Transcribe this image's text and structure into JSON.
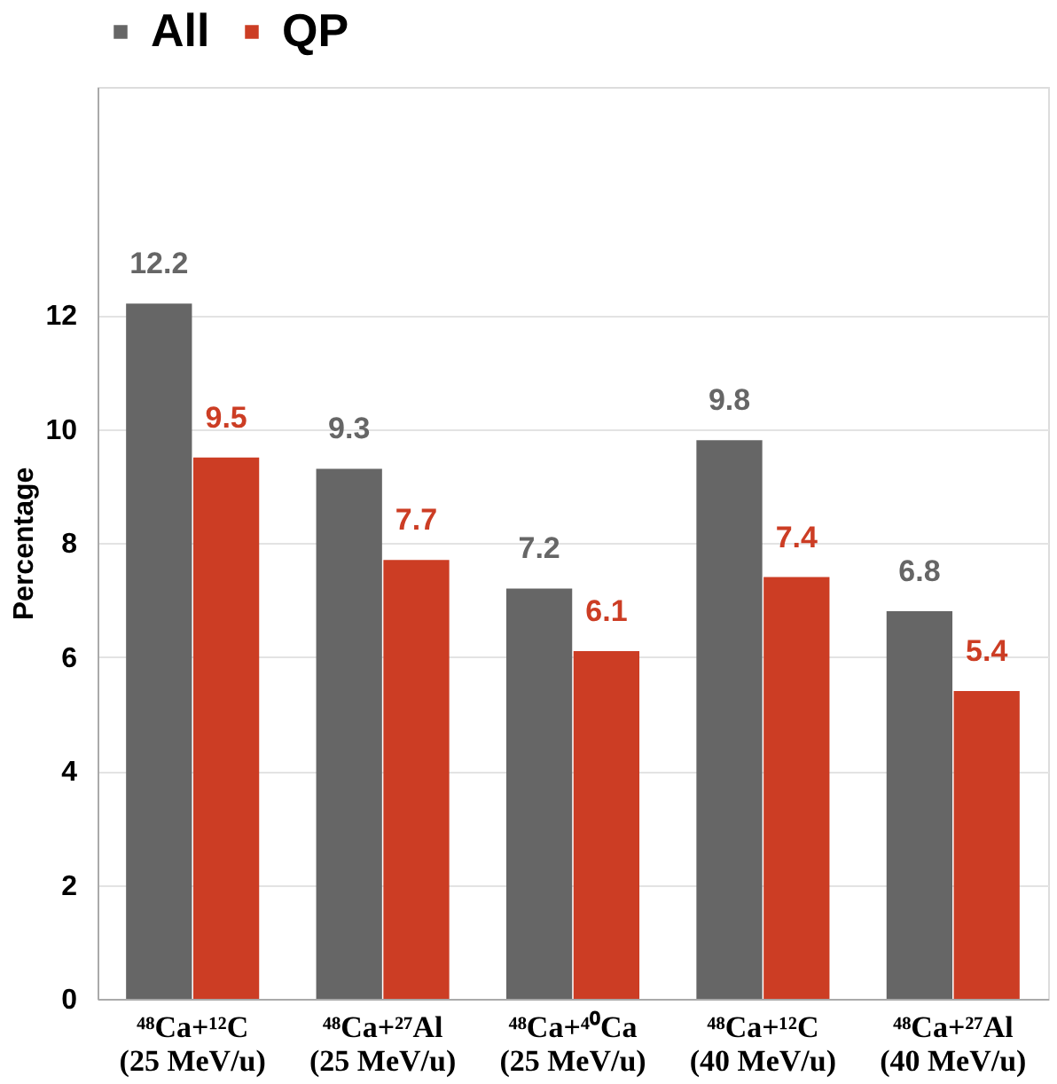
{
  "chart_data": {
    "type": "bar",
    "ylabel": "Percentage",
    "categories": [
      "⁴⁸Ca+¹²C\n(25 MeV/u)",
      "⁴⁸Ca+²⁷Al\n(25 MeV/u)",
      "⁴⁸Ca+⁴⁰Ca\n(25 MeV/u)",
      "⁴⁸Ca+¹²C\n(40 MeV/u)",
      "⁴⁸Ca+²⁷Al\n(40 MeV/u)"
    ],
    "series": [
      {
        "name": "All",
        "color": "#666666",
        "values": [
          12.2,
          9.3,
          7.2,
          9.8,
          6.8
        ]
      },
      {
        "name": "QP",
        "color": "#cc3d24",
        "values": [
          9.5,
          7.7,
          6.1,
          7.4,
          5.4
        ]
      }
    ],
    "ylim": [
      0,
      16
    ],
    "yticks": [
      0,
      2,
      4,
      6,
      8,
      10,
      12
    ],
    "grid": "y",
    "legend": "top",
    "data_labels": true
  }
}
